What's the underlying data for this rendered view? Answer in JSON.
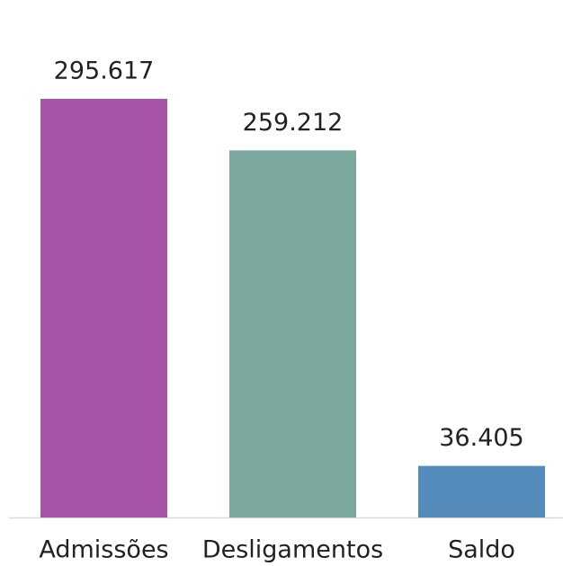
{
  "chart_data": {
    "type": "bar",
    "categories": [
      "Admissões",
      "Desligamentos",
      "Saldo"
    ],
    "values": [
      295617,
      259212,
      36405
    ],
    "value_labels": [
      "295.617",
      "259.212",
      "36.405"
    ],
    "colors": [
      "#a653a8",
      "#7ba89c",
      "#548bbb"
    ]
  }
}
